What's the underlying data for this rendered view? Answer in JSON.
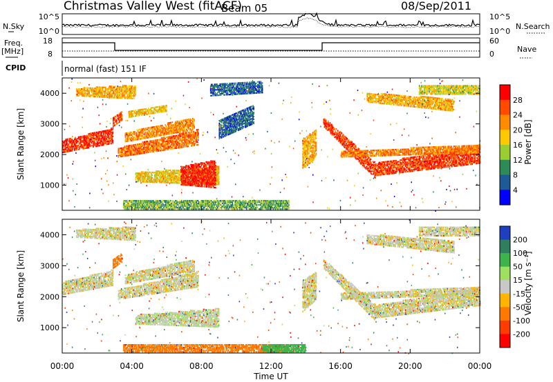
{
  "header": {
    "station": "Christmas Valley West (fitACF)",
    "beam": "Beam 05",
    "date": "08/Sep/2011"
  },
  "strips": {
    "nsky_label": "N.Sky",
    "nsky_ticks": [
      "10^5",
      "10^0"
    ],
    "nsearch_label": "N.Search",
    "nsearch_ticks": [
      "10^5",
      "10^0"
    ],
    "freq_label": "Freq.",
    "freq_unit": "[MHz]",
    "freq_ticks": [
      "18",
      "8"
    ],
    "nave_label": "Nave",
    "nave_ticks": [
      "60",
      "0"
    ],
    "cpid_label": "CPID",
    "cpid_text": "normal (fast) 151 IF"
  },
  "chart_data": [
    {
      "type": "heatmap",
      "name": "power",
      "ylabel": "Slant Range [km]",
      "xlabel": "Time UT",
      "yticks": [
        "4000",
        "3000",
        "2000",
        "1000"
      ],
      "ylim": [
        180,
        4500
      ],
      "xticks": [
        "00:00",
        "04:00",
        "08:00",
        "12:00",
        "16:00",
        "20:00",
        "00:00"
      ],
      "colorbar": {
        "label": "Power [dB]",
        "ticks": [
          "28",
          "24",
          "20",
          "16",
          "12",
          "8",
          "4"
        ],
        "colors": [
          "#ff0000",
          "#ff4a00",
          "#ff8c00",
          "#ffc800",
          "#9acd32",
          "#2e8b57",
          "#1e5a96",
          "#0000ff"
        ]
      },
      "bands": [
        {
          "t": [
            0.0,
            2.9
          ],
          "r0": [
            2050,
            2350
          ],
          "r1": [
            2450,
            2850
          ],
          "v": 26
        },
        {
          "t": [
            2.9,
            3.4
          ],
          "r0": [
            2900,
            3100
          ],
          "r1": [
            3200,
            3400
          ],
          "v": 24
        },
        {
          "t": [
            3.2,
            7.8
          ],
          "r0": [
            1900,
            2300
          ],
          "r1": [
            2200,
            2800
          ],
          "v": 22
        },
        {
          "t": [
            3.6,
            7.6
          ],
          "r0": [
            2400,
            2800
          ],
          "r1": [
            2700,
            3200
          ],
          "v": 20
        },
        {
          "t": [
            3.8,
            6.0
          ],
          "r0": [
            3200,
            3400
          ],
          "r1": [
            3400,
            3600
          ],
          "v": 17
        },
        {
          "t": [
            4.2,
            9.0
          ],
          "r0": [
            1100,
            1000
          ],
          "r1": [
            1400,
            1600
          ],
          "v": 16
        },
        {
          "t": [
            6.8,
            8.8
          ],
          "r0": [
            1000,
            900
          ],
          "r1": [
            1600,
            1800
          ],
          "v": 27
        },
        {
          "t": [
            0.8,
            4.2
          ],
          "r0": [
            3900,
            3800
          ],
          "r1": [
            4150,
            4250
          ],
          "v": 18
        },
        {
          "t": [
            9.0,
            11.0
          ],
          "r0": [
            2500,
            3000
          ],
          "r1": [
            3100,
            3600
          ],
          "v": 5
        },
        {
          "t": [
            8.5,
            11.5
          ],
          "r0": [
            3900,
            4000
          ],
          "r1": [
            4300,
            4400
          ],
          "v": 5
        },
        {
          "t": [
            3.5,
            13.0
          ],
          "r0": [
            200,
            200
          ],
          "r1": [
            500,
            500
          ],
          "v": 10
        },
        {
          "t": [
            13.8,
            14.6
          ],
          "r0": [
            1500,
            1900
          ],
          "r1": [
            2500,
            2800
          ],
          "v": 18
        },
        {
          "t": [
            15.0,
            18.0
          ],
          "r0": [
            2900,
            1200
          ],
          "r1": [
            3200,
            1700
          ],
          "v": 25
        },
        {
          "t": [
            18.0,
            24.0
          ],
          "r0": [
            1300,
            1700
          ],
          "r1": [
            1700,
            2300
          ],
          "v": 25
        },
        {
          "t": [
            16.0,
            24.0
          ],
          "r0": [
            1900,
            2050
          ],
          "r1": [
            2100,
            2300
          ],
          "v": 21
        },
        {
          "t": [
            17.5,
            22.5
          ],
          "r0": [
            3700,
            3400
          ],
          "r1": [
            4000,
            3800
          ],
          "v": 18
        },
        {
          "t": [
            20.5,
            24.0
          ],
          "r0": [
            3950,
            3950
          ],
          "r1": [
            4250,
            4250
          ],
          "v": 14
        }
      ]
    },
    {
      "type": "heatmap",
      "name": "velocity",
      "ylabel": "Slant Range [km]",
      "xlabel": "Time UT",
      "yticks": [
        "4000",
        "3000",
        "2000",
        "1000"
      ],
      "ylim": [
        180,
        4500
      ],
      "xticks": [
        "00:00",
        "04:00",
        "08:00",
        "12:00",
        "16:00",
        "20:00",
        "00:00"
      ],
      "colorbar": {
        "label": "Velocity [m s⁻¹]",
        "ticks": [
          "200",
          "100",
          "50",
          "15",
          "-15",
          "-50",
          "-100",
          "-200"
        ],
        "colors": [
          "#1f3fbf",
          "#2f7f5f",
          "#3cb44b",
          "#a0e060",
          "#c8c8c8",
          "#ffb400",
          "#ff7800",
          "#ff3c00",
          "#ff0000"
        ]
      },
      "bands": [
        {
          "t": [
            0.0,
            2.9
          ],
          "r0": [
            2050,
            2350
          ],
          "r1": [
            2450,
            2850
          ],
          "v": 0
        },
        {
          "t": [
            2.9,
            3.4
          ],
          "r0": [
            2900,
            3100
          ],
          "r1": [
            3200,
            3400
          ],
          "v": -60
        },
        {
          "t": [
            3.2,
            7.8
          ],
          "r0": [
            1900,
            2300
          ],
          "r1": [
            2200,
            2800
          ],
          "v": 0
        },
        {
          "t": [
            3.6,
            7.6
          ],
          "r0": [
            2400,
            2800
          ],
          "r1": [
            2700,
            3200
          ],
          "v": 0
        },
        {
          "t": [
            4.2,
            9.0
          ],
          "r0": [
            1100,
            1000
          ],
          "r1": [
            1400,
            1600
          ],
          "v": 5
        },
        {
          "t": [
            0.8,
            4.2
          ],
          "r0": [
            3900,
            3800
          ],
          "r1": [
            4150,
            4250
          ],
          "v": 0
        },
        {
          "t": [
            3.5,
            13.0
          ],
          "r0": [
            200,
            200
          ],
          "r1": [
            450,
            450
          ],
          "v": -60
        },
        {
          "t": [
            11.5,
            14.0
          ],
          "r0": [
            200,
            200
          ],
          "r1": [
            450,
            450
          ],
          "v": 60
        },
        {
          "t": [
            13.8,
            14.6
          ],
          "r0": [
            1500,
            1900
          ],
          "r1": [
            2500,
            2800
          ],
          "v": 0
        },
        {
          "t": [
            15.0,
            18.0
          ],
          "r0": [
            2900,
            1200
          ],
          "r1": [
            3200,
            1700
          ],
          "v": 0
        },
        {
          "t": [
            18.0,
            24.0
          ],
          "r0": [
            1300,
            1700
          ],
          "r1": [
            1700,
            2300
          ],
          "v": 0
        },
        {
          "t": [
            16.0,
            24.0
          ],
          "r0": [
            1900,
            2050
          ],
          "r1": [
            2100,
            2300
          ],
          "v": 0
        },
        {
          "t": [
            17.5,
            22.5
          ],
          "r0": [
            3700,
            3400
          ],
          "r1": [
            4000,
            3800
          ],
          "v": 0
        },
        {
          "t": [
            20.5,
            24.0
          ],
          "r0": [
            3950,
            3950
          ],
          "r1": [
            4250,
            4250
          ],
          "v": 0
        }
      ]
    }
  ]
}
